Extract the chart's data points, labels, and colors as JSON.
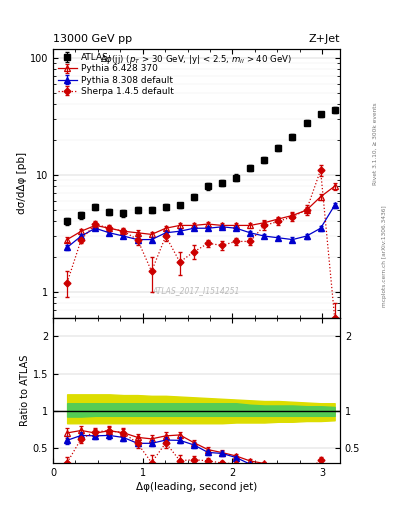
{
  "title_left": "13000 GeV pp",
  "title_right": "Z+Jet",
  "xlabel": "Δφ(leading, second jet)",
  "ylabel_main": "dσ/dΔφ [pb]",
  "ylabel_ratio": "Ratio to ATLAS",
  "watermark": "ATLAS_2017_I1514251",
  "rivet_label": "Rivet 3.1.10, ≥ 300k events",
  "mcplots_label": "mcplots.cern.ch [arXiv:1306.3436]",
  "atlas_x": [
    0.157,
    0.314,
    0.471,
    0.628,
    0.785,
    0.942,
    1.099,
    1.257,
    1.414,
    1.571,
    1.728,
    1.885,
    2.042,
    2.199,
    2.356,
    2.513,
    2.67,
    2.827,
    2.984,
    3.141
  ],
  "atlas_y": [
    4.0,
    4.5,
    5.3,
    4.8,
    4.7,
    5.0,
    5.0,
    5.3,
    5.5,
    6.5,
    8.0,
    8.5,
    9.5,
    11.5,
    13.5,
    17.0,
    21.0,
    28.0,
    33.0,
    36.0
  ],
  "atlas_ey": [
    0.3,
    0.3,
    0.3,
    0.3,
    0.3,
    0.3,
    0.3,
    0.3,
    0.3,
    0.4,
    0.5,
    0.5,
    0.6,
    0.7,
    0.8,
    1.0,
    1.2,
    1.5,
    1.8,
    2.0
  ],
  "py6_x": [
    0.157,
    0.314,
    0.471,
    0.628,
    0.785,
    0.942,
    1.099,
    1.257,
    1.414,
    1.571,
    1.728,
    1.885,
    2.042,
    2.199,
    2.356,
    2.513,
    2.67,
    2.827,
    2.984,
    3.141
  ],
  "py6_y": [
    2.8,
    3.3,
    3.7,
    3.5,
    3.3,
    3.2,
    3.1,
    3.5,
    3.7,
    3.7,
    3.8,
    3.7,
    3.7,
    3.7,
    3.9,
    4.2,
    4.5,
    5.0,
    6.5,
    8.0
  ],
  "py6_ey": [
    0.15,
    0.15,
    0.15,
    0.15,
    0.15,
    0.15,
    0.15,
    0.15,
    0.15,
    0.15,
    0.15,
    0.15,
    0.15,
    0.15,
    0.2,
    0.2,
    0.25,
    0.3,
    0.4,
    0.5
  ],
  "py8_x": [
    0.157,
    0.314,
    0.471,
    0.628,
    0.785,
    0.942,
    1.099,
    1.257,
    1.414,
    1.571,
    1.728,
    1.885,
    2.042,
    2.199,
    2.356,
    2.513,
    2.67,
    2.827,
    2.984,
    3.141
  ],
  "py8_y": [
    2.4,
    3.0,
    3.5,
    3.2,
    3.0,
    2.8,
    2.8,
    3.2,
    3.3,
    3.5,
    3.5,
    3.6,
    3.5,
    3.2,
    3.0,
    2.9,
    2.8,
    3.0,
    3.5,
    5.5
  ],
  "py8_ey": [
    0.12,
    0.12,
    0.12,
    0.12,
    0.12,
    0.12,
    0.12,
    0.12,
    0.12,
    0.12,
    0.12,
    0.12,
    0.12,
    0.12,
    0.12,
    0.12,
    0.12,
    0.15,
    0.18,
    0.3
  ],
  "sh_x": [
    0.157,
    0.314,
    0.471,
    0.628,
    0.785,
    0.942,
    1.099,
    1.257,
    1.414,
    1.571,
    1.728,
    1.885,
    2.042,
    2.199,
    2.356,
    2.513,
    2.67,
    2.827,
    2.984,
    3.141
  ],
  "sh_y": [
    1.2,
    2.8,
    3.8,
    3.5,
    3.3,
    2.8,
    1.5,
    3.0,
    1.8,
    2.2,
    2.6,
    2.5,
    2.7,
    2.7,
    3.7,
    4.0,
    4.4,
    5.0,
    11.0,
    0.6
  ],
  "sh_ey": [
    0.3,
    0.2,
    0.2,
    0.2,
    0.2,
    0.3,
    0.5,
    0.3,
    0.4,
    0.3,
    0.2,
    0.2,
    0.2,
    0.2,
    0.3,
    0.3,
    0.4,
    0.5,
    1.2,
    0.2
  ],
  "band_green_lo": [
    0.92,
    0.92,
    0.93,
    0.93,
    0.93,
    0.93,
    0.93,
    0.93,
    0.93,
    0.93,
    0.93,
    0.93,
    0.93,
    0.93,
    0.93,
    0.93,
    0.93,
    0.93,
    0.93,
    0.93
  ],
  "band_green_hi": [
    1.1,
    1.1,
    1.1,
    1.1,
    1.1,
    1.1,
    1.1,
    1.1,
    1.1,
    1.1,
    1.1,
    1.1,
    1.1,
    1.08,
    1.07,
    1.07,
    1.07,
    1.06,
    1.06,
    1.05
  ],
  "band_yellow_lo": [
    0.83,
    0.83,
    0.83,
    0.83,
    0.83,
    0.83,
    0.83,
    0.83,
    0.83,
    0.83,
    0.83,
    0.83,
    0.84,
    0.84,
    0.84,
    0.85,
    0.85,
    0.86,
    0.86,
    0.87
  ],
  "band_yellow_hi": [
    1.22,
    1.22,
    1.22,
    1.22,
    1.21,
    1.21,
    1.2,
    1.2,
    1.19,
    1.18,
    1.17,
    1.16,
    1.15,
    1.14,
    1.13,
    1.13,
    1.12,
    1.11,
    1.1,
    1.1
  ],
  "color_atlas": "#000000",
  "color_py6": "#cc0000",
  "color_py8": "#0000cc",
  "color_sherpa": "#cc0000",
  "color_green": "#55cc55",
  "color_yellow": "#dddd00",
  "ylim_main": [
    0.6,
    120
  ],
  "ylim_ratio": [
    0.29,
    2.25
  ],
  "xlim": [
    0.0,
    3.2
  ]
}
